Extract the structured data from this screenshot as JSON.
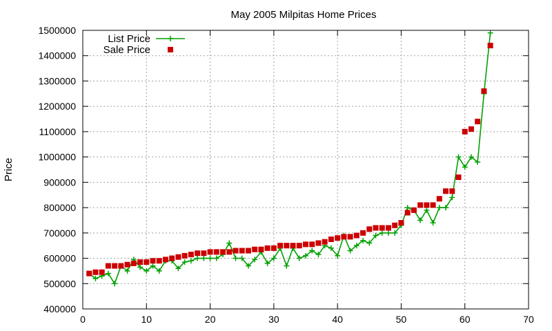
{
  "chart_data": {
    "type": "line",
    "title": "May 2005 Milpitas Home Prices",
    "xlabel": "",
    "ylabel": "Price",
    "xlim": [
      0,
      70
    ],
    "ylim": [
      400000,
      1500000
    ],
    "x_ticks": [
      0,
      10,
      20,
      30,
      40,
      50,
      60,
      70
    ],
    "y_ticks": [
      400000,
      500000,
      600000,
      700000,
      800000,
      900000,
      1000000,
      1100000,
      1200000,
      1300000,
      1400000,
      1500000
    ],
    "grid": true,
    "legend_position": "top-left",
    "series": [
      {
        "name": "List Price",
        "style": "linespoints",
        "color": "#00a000",
        "marker": "plus",
        "x": [
          1,
          2,
          3,
          4,
          5,
          6,
          7,
          8,
          9,
          10,
          11,
          12,
          13,
          14,
          15,
          16,
          17,
          18,
          19,
          20,
          21,
          22,
          23,
          24,
          25,
          26,
          27,
          28,
          29,
          30,
          31,
          32,
          33,
          34,
          35,
          36,
          37,
          38,
          39,
          40,
          41,
          42,
          43,
          44,
          45,
          46,
          47,
          48,
          49,
          50,
          51,
          52,
          53,
          54,
          55,
          56,
          57,
          58,
          59,
          60,
          61,
          62,
          63,
          64
        ],
        "values": [
          540000,
          520000,
          530000,
          540000,
          500000,
          570000,
          550000,
          595000,
          565000,
          550000,
          570000,
          550000,
          590000,
          590000,
          560000,
          585000,
          590000,
          600000,
          600000,
          600000,
          600000,
          615000,
          660000,
          600000,
          600000,
          570000,
          595000,
          625000,
          580000,
          600000,
          640000,
          570000,
          640000,
          600000,
          610000,
          630000,
          615000,
          650000,
          640000,
          610000,
          690000,
          630000,
          650000,
          670000,
          660000,
          690000,
          700000,
          700000,
          700000,
          730000,
          800000,
          790000,
          750000,
          790000,
          740000,
          800000,
          800000,
          840000,
          1000000,
          960000,
          1000000,
          980000,
          1250000,
          1490000
        ]
      },
      {
        "name": "Sale Price",
        "style": "points",
        "color": "#cc0000",
        "marker": "square",
        "x": [
          1,
          2,
          3,
          4,
          5,
          6,
          7,
          8,
          9,
          10,
          11,
          12,
          13,
          14,
          15,
          16,
          17,
          18,
          19,
          20,
          21,
          22,
          23,
          24,
          25,
          26,
          27,
          28,
          29,
          30,
          31,
          32,
          33,
          34,
          35,
          36,
          37,
          38,
          39,
          40,
          41,
          42,
          43,
          44,
          45,
          46,
          47,
          48,
          49,
          50,
          51,
          52,
          53,
          54,
          55,
          56,
          57,
          58,
          59,
          60,
          61,
          62,
          63,
          64
        ],
        "values": [
          540000,
          545000,
          545000,
          570000,
          570000,
          570000,
          575000,
          580000,
          585000,
          585000,
          590000,
          590000,
          595000,
          600000,
          605000,
          610000,
          615000,
          620000,
          620000,
          625000,
          625000,
          625000,
          625000,
          630000,
          630000,
          630000,
          635000,
          635000,
          640000,
          640000,
          650000,
          650000,
          650000,
          650000,
          655000,
          655000,
          660000,
          665000,
          675000,
          680000,
          685000,
          685000,
          690000,
          700000,
          715000,
          720000,
          720000,
          720000,
          730000,
          740000,
          780000,
          790000,
          810000,
          810000,
          810000,
          835000,
          865000,
          865000,
          920000,
          1100000,
          1110000,
          1140000,
          1260000,
          1440000
        ]
      }
    ]
  }
}
